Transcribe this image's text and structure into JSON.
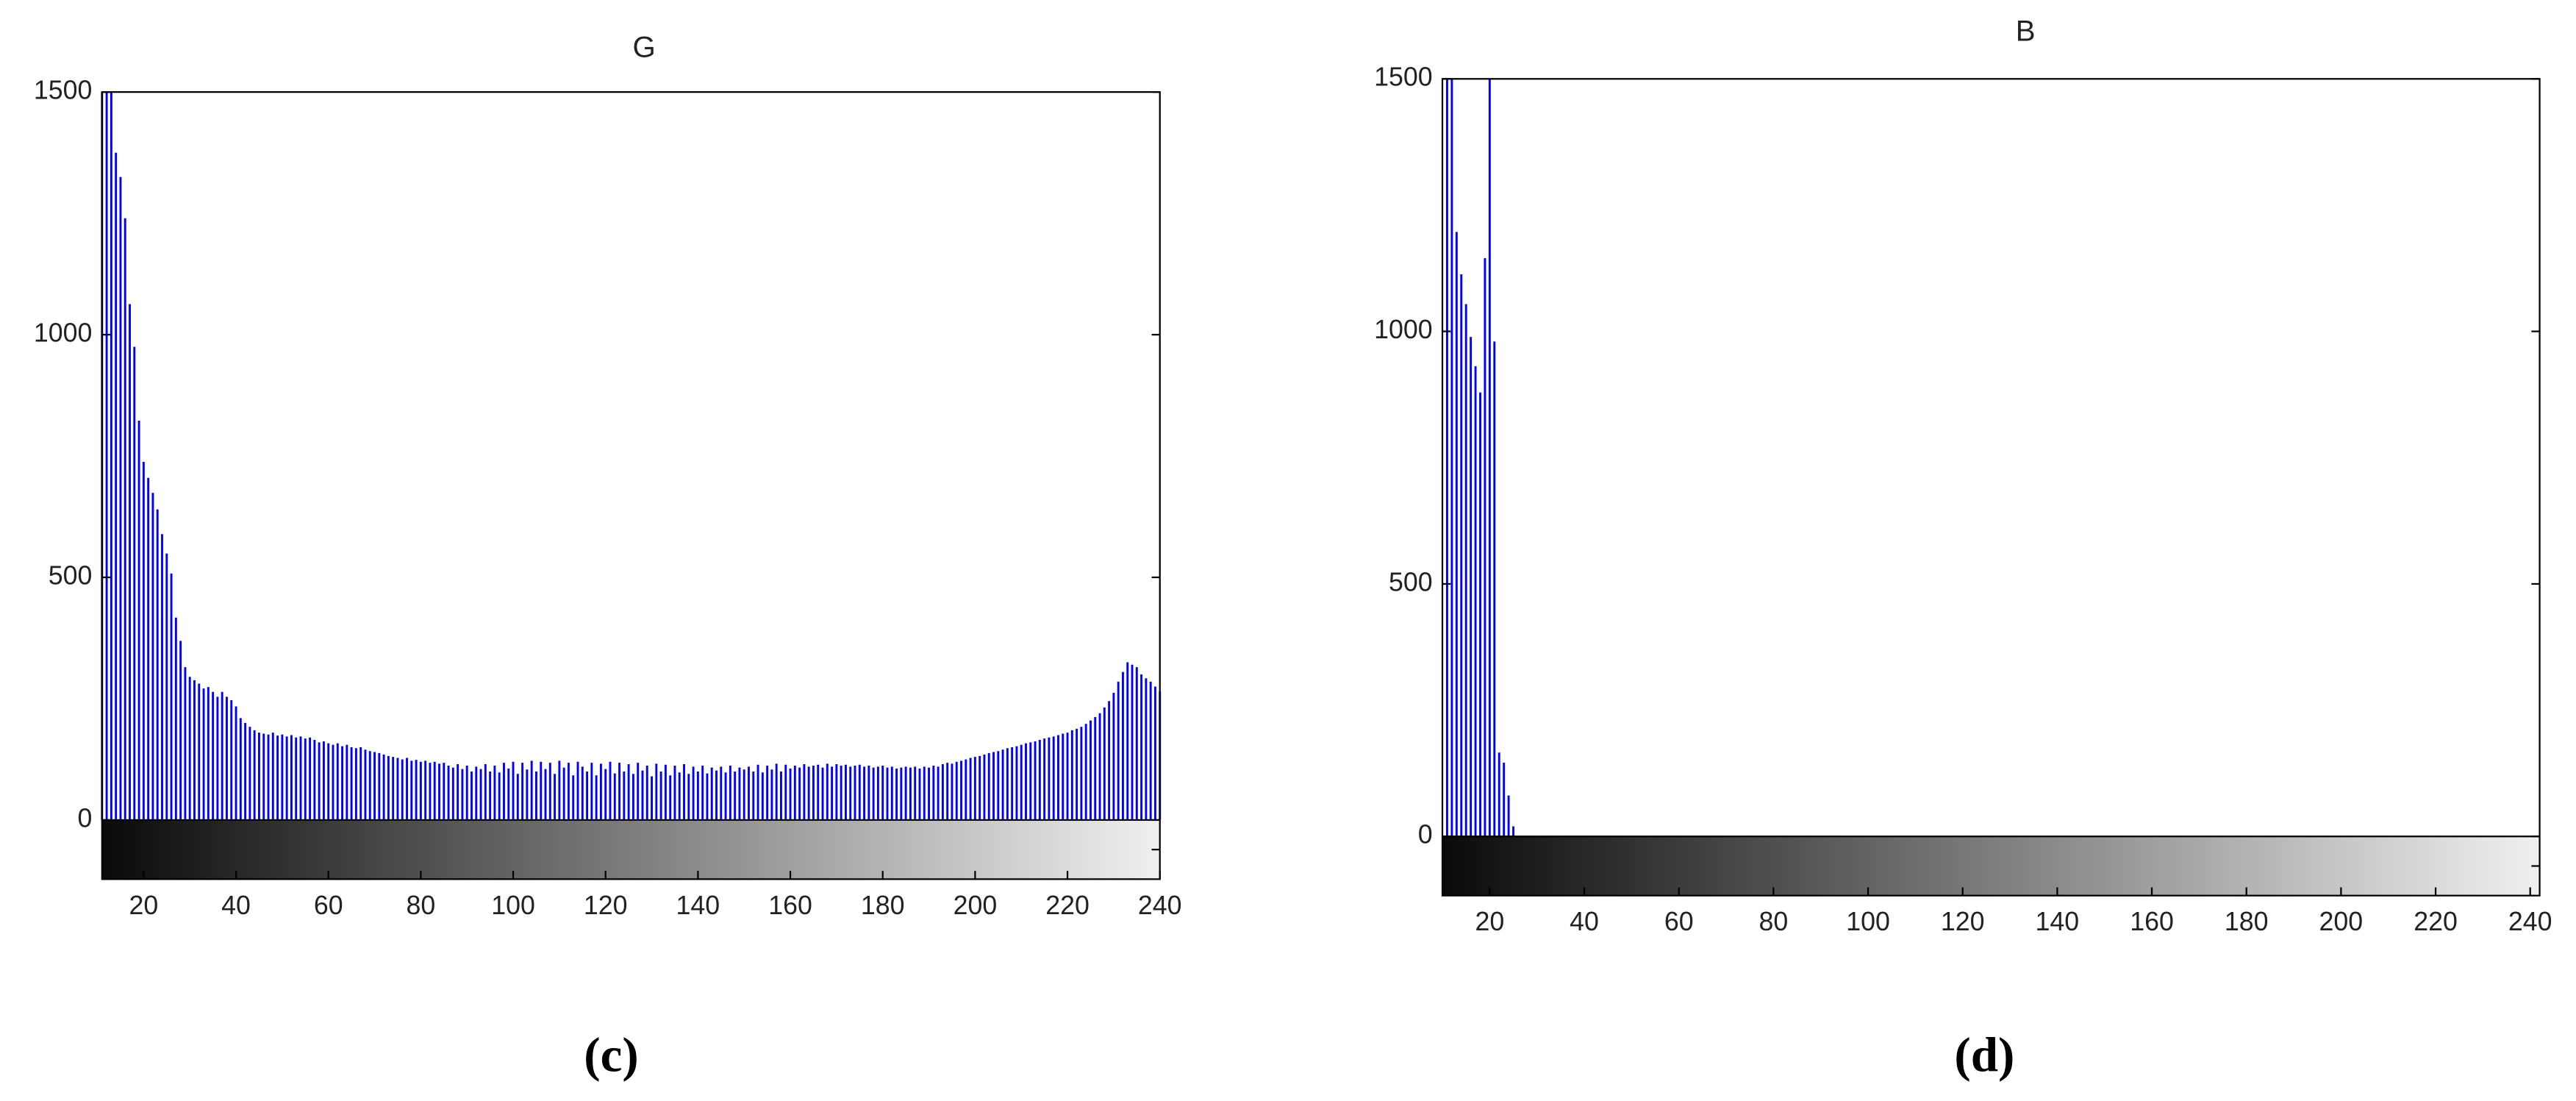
{
  "chart_data": [
    {
      "type": "bar",
      "title": "G",
      "caption": "(c)",
      "color": "#0000ff",
      "xlim": [
        11,
        240
      ],
      "ylim": [
        0,
        1500
      ],
      "xticks": [
        20,
        40,
        60,
        80,
        100,
        120,
        140,
        160,
        180,
        200,
        220,
        240
      ],
      "yticks": [
        0,
        500,
        1000,
        1500
      ],
      "x": [
        11,
        12,
        13,
        14,
        15,
        16,
        17,
        18,
        19,
        20,
        21,
        22,
        23,
        24,
        25,
        26,
        27,
        28,
        29,
        30,
        31,
        32,
        33,
        34,
        35,
        36,
        37,
        38,
        39,
        40,
        41,
        42,
        43,
        44,
        45,
        46,
        47,
        48,
        49,
        50,
        51,
        52,
        53,
        54,
        55,
        56,
        57,
        58,
        59,
        60,
        61,
        62,
        63,
        64,
        65,
        66,
        67,
        68,
        69,
        70,
        71,
        72,
        73,
        74,
        75,
        76,
        77,
        78,
        79,
        80,
        81,
        82,
        83,
        84,
        85,
        86,
        87,
        88,
        89,
        90,
        91,
        92,
        93,
        94,
        95,
        96,
        97,
        98,
        99,
        100,
        101,
        102,
        103,
        104,
        105,
        106,
        107,
        108,
        109,
        110,
        111,
        112,
        113,
        114,
        115,
        116,
        117,
        118,
        119,
        120,
        121,
        122,
        123,
        124,
        125,
        126,
        127,
        128,
        129,
        130,
        131,
        132,
        133,
        134,
        135,
        136,
        137,
        138,
        139,
        140,
        141,
        142,
        143,
        144,
        145,
        146,
        147,
        148,
        149,
        150,
        151,
        152,
        153,
        154,
        155,
        156,
        157,
        158,
        159,
        160,
        161,
        162,
        163,
        164,
        165,
        166,
        167,
        168,
        169,
        170,
        171,
        172,
        173,
        174,
        175,
        176,
        177,
        178,
        179,
        180,
        181,
        182,
        183,
        184,
        185,
        186,
        187,
        188,
        189,
        190,
        191,
        192,
        193,
        194,
        195,
        196,
        197,
        198,
        199,
        200,
        201,
        202,
        203,
        204,
        205,
        206,
        207,
        208,
        209,
        210,
        211,
        212,
        213,
        214,
        215,
        216,
        217,
        218,
        219,
        220,
        221,
        222,
        223,
        224,
        225,
        226,
        227,
        228,
        229,
        230,
        231,
        232,
        233,
        234,
        235,
        236,
        237,
        238,
        239,
        240
      ],
      "values": [
        1500,
        1500,
        1500,
        1375,
        1325,
        1240,
        1063,
        975,
        823,
        738,
        705,
        674,
        640,
        589,
        549,
        508,
        417,
        369,
        315,
        295,
        288,
        281,
        271,
        274,
        264,
        254,
        264,
        254,
        247,
        234,
        210,
        200,
        192,
        185,
        180,
        178,
        176,
        180,
        174,
        176,
        172,
        175,
        170,
        172,
        168,
        170,
        165,
        160,
        162,
        158,
        155,
        158,
        152,
        155,
        150,
        148,
        150,
        145,
        142,
        140,
        138,
        135,
        132,
        130,
        128,
        125,
        128,
        122,
        124,
        120,
        122,
        118,
        120,
        116,
        118,
        112,
        108,
        115,
        105,
        112,
        100,
        110,
        105,
        115,
        100,
        112,
        98,
        118,
        106,
        120,
        95,
        118,
        104,
        122,
        100,
        120,
        105,
        118,
        95,
        122,
        108,
        118,
        92,
        120,
        110,
        100,
        118,
        92,
        116,
        105,
        120,
        96,
        118,
        100,
        115,
        95,
        118,
        102,
        112,
        90,
        116,
        100,
        114,
        92,
        112,
        98,
        115,
        95,
        110,
        100,
        112,
        96,
        108,
        102,
        110,
        98,
        112,
        100,
        108,
        104,
        110,
        100,
        114,
        98,
        112,
        104,
        116,
        100,
        114,
        106,
        112,
        108,
        115,
        110,
        112,
        114,
        108,
        116,
        110,
        115,
        112,
        114,
        110,
        112,
        114,
        110,
        112,
        108,
        110,
        112,
        108,
        110,
        106,
        108,
        110,
        108,
        110,
        106,
        110,
        108,
        112,
        110,
        115,
        118,
        116,
        120,
        122,
        125,
        128,
        130,
        132,
        135,
        138,
        140,
        142,
        145,
        148,
        150,
        152,
        155,
        158,
        160,
        162,
        165,
        168,
        170,
        172,
        175,
        178,
        180,
        185,
        188,
        192,
        198,
        205,
        212,
        220,
        232,
        245,
        262,
        285,
        305,
        325,
        320,
        315,
        300,
        292,
        285,
        275,
        265
      ]
    },
    {
      "type": "bar",
      "title": "B",
      "caption": "(d)",
      "color": "#0000ff",
      "xlim": [
        10,
        242
      ],
      "ylim": [
        0,
        1500
      ],
      "xticks": [
        20,
        40,
        60,
        80,
        100,
        120,
        140,
        160,
        180,
        200,
        220,
        240
      ],
      "yticks": [
        0,
        500,
        1000,
        1500
      ],
      "x": [
        11,
        12,
        13,
        14,
        15,
        16,
        17,
        18,
        19,
        20,
        21,
        22,
        23,
        24,
        25
      ],
      "values": [
        1500,
        1500,
        1197,
        1113,
        1054,
        989,
        931,
        879,
        1145,
        1500,
        980,
        166,
        146,
        81,
        20
      ]
    }
  ]
}
